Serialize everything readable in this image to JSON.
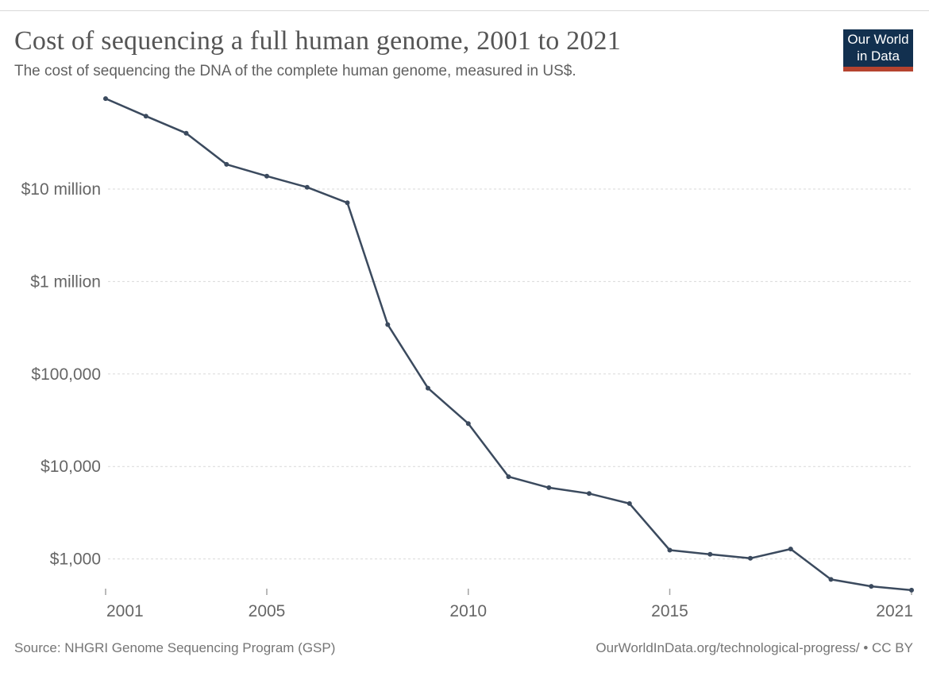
{
  "header": {
    "title": "Cost of sequencing a full human genome, 2001 to 2021",
    "subtitle": "The cost of sequencing the DNA of the complete human genome, measured in US$.",
    "logo": {
      "line1": "Our World",
      "line2": "in Data",
      "bg_color": "#12304f",
      "bar_color": "#b5432f",
      "text_color": "#ffffff"
    }
  },
  "chart_data": {
    "type": "line",
    "title": "Cost of sequencing a full human genome, 2001 to 2021",
    "subtitle": "The cost of sequencing the DNA of the complete human genome, measured in US$.",
    "xlabel": "",
    "ylabel": "",
    "y_scale": "log",
    "xlim": [
      2001,
      2021
    ],
    "ylim": [
      450,
      107000000
    ],
    "grid": true,
    "legend": "none",
    "line_color": "#3b4a5e",
    "marker": "dot",
    "grid_color": "#d9d9d9",
    "tick_label_color": "#666666",
    "tick_mark_color": "#a3a3a3",
    "series": [
      {
        "name": "Cost of sequencing a full human genome (US$)",
        "x": [
          2001,
          2002,
          2003,
          2004,
          2005,
          2006,
          2007,
          2008,
          2009,
          2010,
          2011,
          2012,
          2013,
          2014,
          2015,
          2016,
          2017,
          2018,
          2019,
          2020,
          2021
        ],
        "y": [
          95263072,
          61448422,
          40157554,
          18500000,
          13801124,
          10474556,
          7100000,
          342502,
          70333,
          29092,
          7743,
          5901,
          5096,
          3970,
          1245,
          1121,
          1015,
          1280,
          600,
          505,
          460
        ]
      }
    ],
    "y_ticks": [
      {
        "label": "$10 million",
        "value": 10000000
      },
      {
        "label": "$1 million",
        "value": 1000000
      },
      {
        "label": "$100,000",
        "value": 100000
      },
      {
        "label": "$10,000",
        "value": 10000
      },
      {
        "label": "$1,000",
        "value": 1000
      }
    ],
    "x_ticks": [
      {
        "label": "2001",
        "value": 2001,
        "align": "start"
      },
      {
        "label": "2005",
        "value": 2005,
        "align": "middle"
      },
      {
        "label": "2010",
        "value": 2010,
        "align": "middle"
      },
      {
        "label": "2015",
        "value": 2015,
        "align": "middle"
      },
      {
        "label": "2021",
        "value": 2021,
        "align": "end"
      }
    ]
  },
  "footer": {
    "source": "Source: NHGRI Genome Sequencing Program (GSP)",
    "credit": "OurWorldInData.org/technological-progress/ • CC BY"
  }
}
